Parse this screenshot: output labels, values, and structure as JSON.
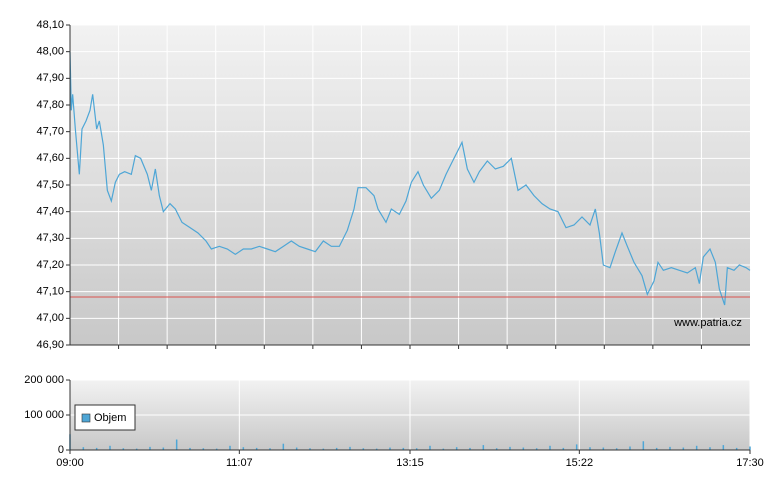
{
  "chart_data": [
    {
      "type": "line",
      "x": [
        540,
        541,
        542,
        544,
        547,
        549,
        552,
        555,
        557,
        560,
        562,
        565,
        568,
        571,
        574,
        577,
        581,
        586,
        589,
        593,
        598,
        601,
        604,
        607,
        610,
        615,
        619,
        624,
        630,
        636,
        642,
        646,
        652,
        658,
        664,
        670,
        676,
        682,
        688,
        694,
        700,
        706,
        712,
        718,
        724,
        730,
        736,
        742,
        748,
        753,
        756,
        762,
        768,
        771,
        777,
        781,
        787,
        792,
        796,
        801,
        805,
        811,
        817,
        822,
        826,
        831,
        834,
        838,
        843,
        847,
        853,
        859,
        865,
        871,
        876,
        882,
        888,
        894,
        900,
        906,
        912,
        918,
        924,
        930,
        934,
        937,
        940,
        945,
        949,
        954,
        958,
        963,
        969,
        973,
        978,
        981,
        985,
        991,
        997,
        1003,
        1009,
        1012,
        1015,
        1020,
        1024,
        1027,
        1031,
        1033,
        1038,
        1042,
        1047,
        1050
      ],
      "series": [
        {
          "color": "#4ea6d6",
          "values": [
            48.0,
            47.78,
            47.84,
            47.71,
            47.54,
            47.71,
            47.74,
            47.78,
            47.84,
            47.71,
            47.74,
            47.65,
            47.48,
            47.44,
            47.51,
            47.54,
            47.55,
            47.54,
            47.61,
            47.6,
            47.54,
            47.48,
            47.56,
            47.46,
            47.4,
            47.43,
            47.41,
            47.36,
            47.34,
            47.32,
            47.29,
            47.26,
            47.27,
            47.26,
            47.24,
            47.26,
            47.26,
            47.27,
            47.26,
            47.25,
            47.27,
            47.29,
            47.27,
            47.26,
            47.25,
            47.29,
            47.27,
            47.27,
            47.33,
            47.41,
            47.49,
            47.49,
            47.46,
            47.41,
            47.36,
            47.41,
            47.39,
            47.44,
            47.51,
            47.55,
            47.5,
            47.45,
            47.48,
            47.54,
            47.58,
            47.63,
            47.66,
            47.56,
            47.51,
            47.55,
            47.59,
            47.56,
            47.57,
            47.6,
            47.48,
            47.5,
            47.46,
            47.43,
            47.41,
            47.4,
            47.34,
            47.35,
            47.38,
            47.35,
            47.41,
            47.32,
            47.2,
            47.19,
            47.25,
            47.32,
            47.27,
            47.21,
            47.16,
            47.09,
            47.14,
            47.21,
            47.18,
            47.19,
            47.18,
            47.17,
            47.19,
            47.13,
            47.23,
            47.26,
            47.21,
            47.11,
            47.05,
            47.19,
            47.18,
            47.2,
            47.19,
            47.18
          ]
        }
      ],
      "reference_line": {
        "value": 47.08,
        "color": "#d9534f"
      },
      "xlim": [
        540,
        1050
      ],
      "ylim": [
        46.9,
        48.1
      ],
      "yticks": [
        {
          "value": 46.9,
          "label": "46,90"
        },
        {
          "value": 47.0,
          "label": "47,00"
        },
        {
          "value": 47.1,
          "label": "47,10"
        },
        {
          "value": 47.2,
          "label": "47,20"
        },
        {
          "value": 47.3,
          "label": "47,30"
        },
        {
          "value": 47.4,
          "label": "47,40"
        },
        {
          "value": 47.5,
          "label": "47,50"
        },
        {
          "value": 47.6,
          "label": "47,60"
        },
        {
          "value": 47.7,
          "label": "47,70"
        },
        {
          "value": 47.8,
          "label": "47,80"
        },
        {
          "value": 47.9,
          "label": "47,90"
        },
        {
          "value": 48.0,
          "label": "48,00"
        },
        {
          "value": 48.1,
          "label": "48,10"
        }
      ],
      "annotation": "www.patria.cz",
      "grid": true
    },
    {
      "type": "bar",
      "x": [
        540,
        550,
        560,
        570,
        580,
        590,
        600,
        610,
        620,
        630,
        640,
        650,
        660,
        670,
        680,
        690,
        700,
        710,
        720,
        730,
        740,
        750,
        760,
        770,
        780,
        790,
        800,
        810,
        820,
        830,
        840,
        850,
        860,
        870,
        880,
        890,
        900,
        910,
        920,
        930,
        940,
        950,
        960,
        970,
        980,
        990,
        1000,
        1010,
        1020,
        1030,
        1040,
        1050
      ],
      "series": [
        {
          "name": "Objem",
          "color": "#4ea6d6",
          "values": [
            45000,
            8000,
            6000,
            12000,
            5000,
            4000,
            9000,
            7000,
            30000,
            6000,
            5000,
            4000,
            12000,
            8000,
            6000,
            5000,
            18000,
            7000,
            5000,
            4000,
            6000,
            9000,
            5000,
            4000,
            7000,
            6000,
            5000,
            12000,
            4000,
            8000,
            6000,
            14000,
            5000,
            9000,
            7000,
            5000,
            12000,
            6000,
            16000,
            8000,
            7000,
            5000,
            10000,
            25000,
            6000,
            9000,
            7000,
            12000,
            8000,
            14000,
            6000,
            10000
          ]
        }
      ],
      "xlim": [
        540,
        1050
      ],
      "xticks": [
        {
          "value": 540,
          "label": "09:00"
        },
        {
          "value": 667,
          "label": "11:07"
        },
        {
          "value": 795,
          "label": "13:15"
        },
        {
          "value": 922,
          "label": "15:22"
        },
        {
          "value": 1050,
          "label": "17:30"
        }
      ],
      "ylim": [
        0,
        200000
      ],
      "yticks": [
        {
          "value": 0,
          "label": "0"
        },
        {
          "value": 100000,
          "label": "100 000"
        },
        {
          "value": 200000,
          "label": "200 000"
        }
      ],
      "legend": "bottom-left",
      "grid": true
    }
  ]
}
